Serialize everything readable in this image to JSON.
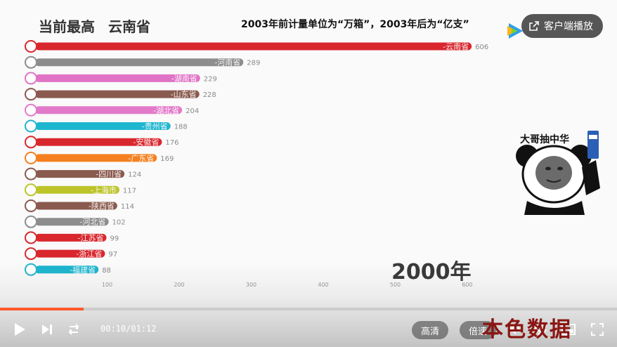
{
  "video": {
    "leader_label": "当前最高",
    "leader_value": "云南省",
    "note": "2003年前计量单位为“万箱”，2003年后为“亿支”",
    "year": "2000年",
    "watermark": "本色数据"
  },
  "overlay": {
    "client_button": "客户端播放",
    "meme_caption": "大哥抽中华"
  },
  "player": {
    "current_time": "00:10",
    "separator": "/",
    "total_time": "01:12",
    "progress": 0.135,
    "quality_button": "高清",
    "speed_button": "倍速"
  },
  "icons": {
    "play": "play-icon",
    "next": "next-icon",
    "loop": "loop-icon",
    "volume": "volume-icon",
    "settings": "settings-icon",
    "pip": "pip-icon",
    "fullscreen": "fullscreen-icon",
    "client": "external-open-icon"
  },
  "chart_data": {
    "type": "bar",
    "orientation": "horizontal",
    "categories": [
      "云南省",
      "河南省",
      "湖南省",
      "山东省",
      "湖北省",
      "贵州省",
      "安徽省",
      "广东省",
      "四川省",
      "上海市",
      "陕西省",
      "河北省",
      "江苏省",
      "浙江省",
      "福建省"
    ],
    "values": [
      606,
      289,
      229,
      228,
      204,
      188,
      176,
      169,
      124,
      117,
      114,
      102,
      99,
      97,
      88
    ],
    "colors": [
      "#d8282e",
      "#8d8d8d",
      "#e073c6",
      "#8a5a4e",
      "#e37ac9",
      "#1fb6cf",
      "#d8282e",
      "#f4801f",
      "#8a5a4e",
      "#bcc42a",
      "#8a5a4e",
      "#8d8d8d",
      "#d8282e",
      "#d8282e",
      "#1fb6cf"
    ],
    "xticks": [
      100,
      200,
      300,
      400,
      500,
      600
    ],
    "xlim": [
      0,
      600
    ],
    "label_prefix": "-"
  }
}
